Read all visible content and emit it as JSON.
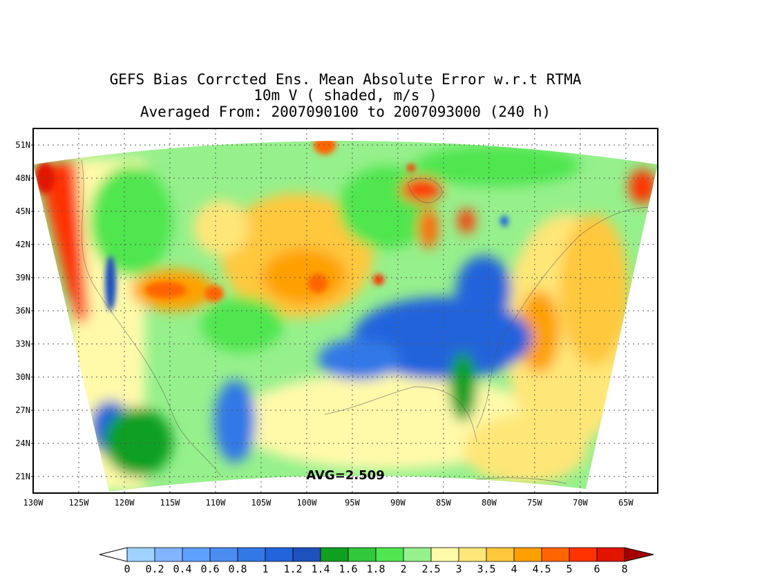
{
  "title": {
    "line1": "GEFS Bias Corrcted Ens. Mean Absolute Error w.r.t RTMA",
    "line2": "10m V ( shaded, m/s )",
    "line3": "Averaged From: 2007090100 to 2007093000 (240 h)"
  },
  "map": {
    "lat_labels": [
      "51N",
      "48N",
      "45N",
      "42N",
      "39N",
      "36N",
      "33N",
      "30N",
      "27N",
      "24N",
      "21N"
    ],
    "lat_values": [
      51,
      48,
      45,
      42,
      39,
      36,
      33,
      30,
      27,
      24,
      21
    ],
    "lon_labels": [
      "130W",
      "125W",
      "120W",
      "115W",
      "110W",
      "105W",
      "100W",
      "95W",
      "90W",
      "85W",
      "80W",
      "75W",
      "70W",
      "65W"
    ],
    "lon_values": [
      -130,
      -125,
      -120,
      -115,
      -110,
      -105,
      -100,
      -95,
      -90,
      -85,
      -80,
      -75,
      -70,
      -65
    ],
    "lat_range": [
      19.5,
      52.5
    ],
    "lon_range": [
      -130,
      -61.5
    ],
    "average_label": "AVG=2.509"
  },
  "colorbar": {
    "labels": [
      "0",
      "0.2",
      "0.4",
      "0.6",
      "0.8",
      "1",
      "1.2",
      "1.4",
      "1.6",
      "1.8",
      "2",
      "2.5",
      "3",
      "3.5",
      "4",
      "4.5",
      "5",
      "6",
      "8"
    ],
    "colors": [
      "#a0d2ff",
      "#82b4ff",
      "#5ea0ff",
      "#4a8cf0",
      "#3278e6",
      "#2364dc",
      "#1e50be",
      "#10a020",
      "#32c83c",
      "#50e650",
      "#96f08c",
      "#fffaaa",
      "#ffe678",
      "#ffc83c",
      "#ffa000",
      "#ff6400",
      "#ff3200",
      "#e11400",
      "#a50000"
    ]
  }
}
